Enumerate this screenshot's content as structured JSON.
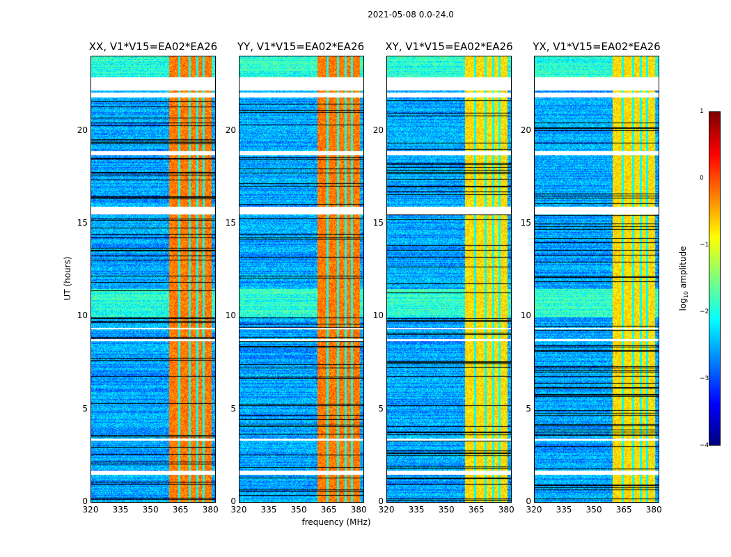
{
  "figure": {
    "suptitle": "2021-05-08 0.0-24.0",
    "ylabel": "UT (hours)",
    "xlabel": "frequency (MHz)"
  },
  "chart_data": {
    "type": "heatmap",
    "title": "2021-05-08 0.0-24.0",
    "xlabel": "frequency (MHz)",
    "ylabel": "UT (hours)",
    "xlim": [
      320,
      382
    ],
    "ylim": [
      0,
      24
    ],
    "xticks": [
      "320",
      "335",
      "350",
      "365",
      "380"
    ],
    "yticks": [
      "0",
      "5",
      "10",
      "15",
      "20"
    ],
    "panels": [
      {
        "title": "XX, V1*V15=EA02*EA26",
        "pol": "XX"
      },
      {
        "title": "YY, V1*V15=EA02*EA26",
        "pol": "YY"
      },
      {
        "title": "XY, V1*V15=EA02*EA26",
        "pol": "XY"
      },
      {
        "title": "YX, V1*V15=EA02*EA26",
        "pol": "YX"
      }
    ],
    "high_amplitude_band_mhz": [
      359,
      380
    ],
    "flagged_hours": [
      [
        22.2,
        22.9
      ],
      [
        21.8,
        22.05
      ],
      [
        18.7,
        18.9
      ],
      [
        15.5,
        15.9
      ],
      [
        9.3,
        9.4
      ],
      [
        8.7,
        8.8
      ],
      [
        3.3,
        3.45
      ],
      [
        1.5,
        1.7
      ]
    ],
    "colorbar": {
      "label_main": "log",
      "label_sub": "10",
      "label_rest": " amplitude",
      "range": [
        -4,
        1
      ],
      "ticks": [
        "1",
        "0",
        "−1",
        "−2",
        "−3",
        "−4"
      ],
      "colormap": "jet"
    }
  }
}
